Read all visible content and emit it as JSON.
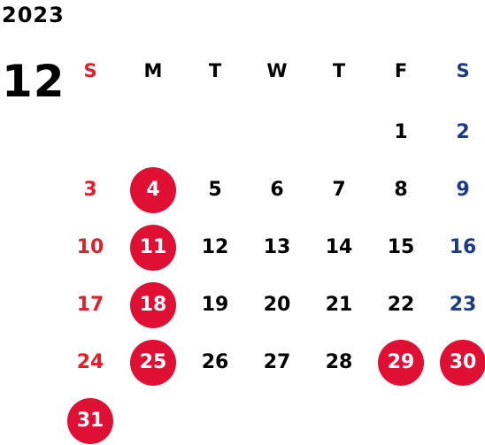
{
  "calendar": {
    "year": "2023",
    "month": "12",
    "weekdays": [
      "S",
      "M",
      "T",
      "W",
      "T",
      "F",
      "S"
    ],
    "first_weekday_index": 5,
    "days_in_month": 31,
    "highlighted_days": [
      4,
      11,
      18,
      25,
      29,
      30,
      31
    ],
    "colors": {
      "text": "#000000",
      "sunday": "#e0202a",
      "saturday": "#1a3a8a",
      "highlight_fill": "#e01035",
      "highlight_text": "#ffffff"
    }
  }
}
